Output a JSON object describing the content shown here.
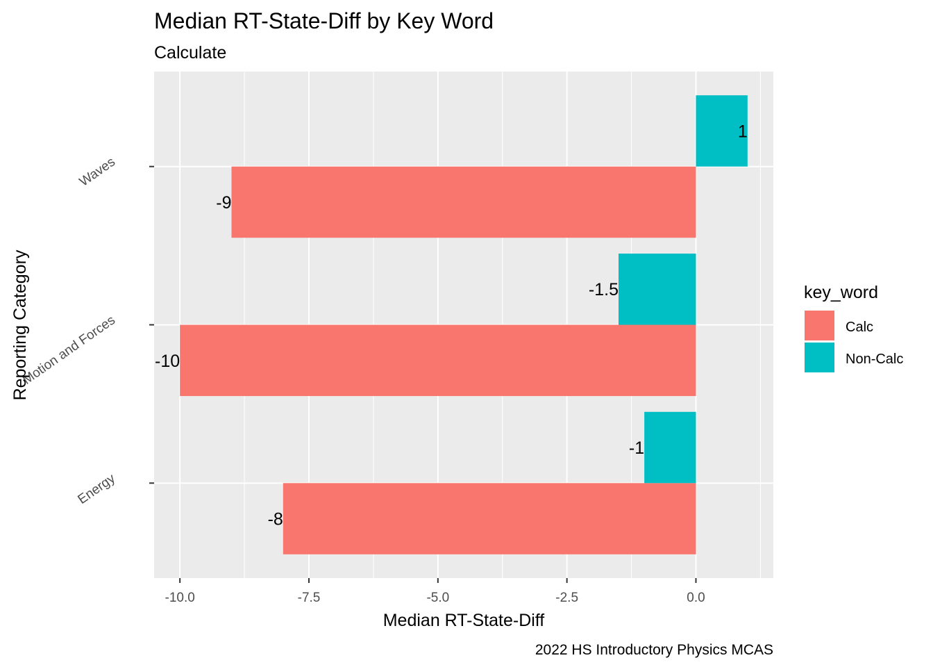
{
  "chart_data": {
    "type": "bar",
    "orientation": "horizontal",
    "title": "Median RT-State-Diff by Key Word",
    "subtitle": "Calculate",
    "xlabel": "Median RT-State-Diff",
    "ylabel": "Reporting Category",
    "caption": "2022 HS Introductory Physics MCAS",
    "categories": [
      "Energy",
      "Motion and Forces",
      "Waves"
    ],
    "series": [
      {
        "name": "Calc",
        "color": "#F8766D",
        "values": [
          -8,
          -10,
          -9
        ],
        "labels": [
          "-8",
          "-10",
          "-9"
        ]
      },
      {
        "name": "Non-Calc",
        "color": "#00BFC4",
        "values": [
          -1,
          -1.5,
          1
        ],
        "labels": [
          "-1",
          "-1.5",
          "1"
        ]
      }
    ],
    "xlim": [
      -10.5,
      1.5
    ],
    "xticks": [
      -10,
      -7.5,
      -5,
      -2.5,
      0
    ],
    "xtick_labels": [
      "-10.0",
      "-7.5",
      "-5.0",
      "-2.5",
      "0.0"
    ],
    "grid": true,
    "legend": {
      "title": "key_word",
      "position": "right",
      "entries": [
        "Calc",
        "Non-Calc"
      ]
    }
  }
}
